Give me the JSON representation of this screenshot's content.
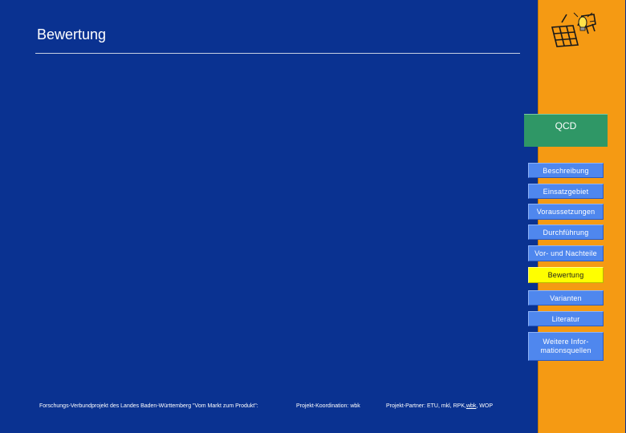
{
  "page": {
    "title": "Bewertung"
  },
  "qcd": {
    "label": "QCD"
  },
  "nav": {
    "items": [
      {
        "label": "Beschreibung"
      },
      {
        "label": "Einsatzgebiet"
      },
      {
        "label": "Voraussetzungen"
      },
      {
        "label": "Durchführung"
      },
      {
        "label": "Vor- und Nachteile"
      },
      {
        "label": "Bewertung"
      },
      {
        "label": "Varianten"
      },
      {
        "label": "Literatur"
      },
      {
        "label": "Weitere Infor-mationsquellen"
      }
    ],
    "active_index": 5
  },
  "footer": {
    "project": "Forschungs-Verbundprojekt des Landes Baden-Württemberg \"Vom Markt zum Produkt\":",
    "coordination": "Projekt-Koordination: wbk",
    "partners_prefix": "Projekt-Partner: ETU, mkl, RPK, ",
    "partners_link": "wbk",
    "partners_suffix": ", WOP"
  },
  "colors": {
    "background": "#0a3291",
    "sidebar": "#f59a13",
    "qcd": "#2f9766",
    "nav_button": "#4f87ee",
    "nav_active": "#ffff00"
  },
  "icons": {
    "logo": "grid-lightbulb-logo-icon"
  }
}
